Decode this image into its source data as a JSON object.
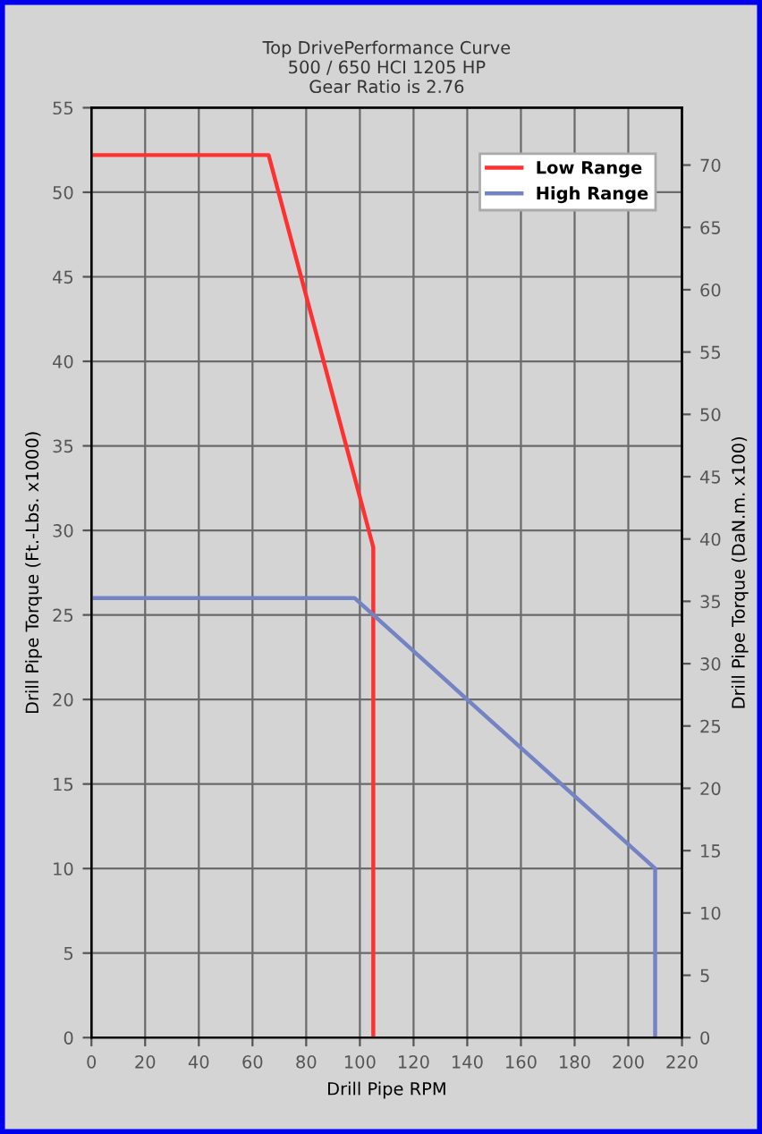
{
  "chart_data": {
    "type": "line",
    "title": "Top DrivePerformance Curve\n500 / 650 HCI 1205 HP\nGear Ratio is 2.76",
    "xlabel": "Drill Pipe RPM",
    "ylabel": "Drill Pipe Torque (Ft.-Lbs. x1000)",
    "y2label": "Drill Pipe Torque (DaN.m. x100)",
    "series": [
      {
        "name": "Low Range",
        "color": "#ff3030",
        "x": [
          0,
          66,
          105,
          105
        ],
        "values": [
          52.2,
          52.2,
          29,
          0
        ]
      },
      {
        "name": "High Range",
        "color": "#7383c4",
        "x": [
          0,
          98,
          210,
          210
        ],
        "values": [
          26,
          26,
          10,
          0
        ]
      }
    ],
    "xlim": [
      0,
      220
    ],
    "xticks": [
      0,
      20,
      40,
      60,
      80,
      100,
      120,
      140,
      160,
      180,
      200,
      220
    ],
    "ylim": [
      0,
      55
    ],
    "yticks": [
      0,
      5,
      10,
      15,
      20,
      25,
      30,
      35,
      40,
      45,
      50,
      55
    ],
    "y2lim": [
      0,
      74.6
    ],
    "y2ticks": [
      0,
      5,
      10,
      15,
      20,
      25,
      30,
      35,
      40,
      45,
      50,
      55,
      60,
      65,
      70
    ],
    "grid": true,
    "legend": "top right",
    "line_style": "solid",
    "marker": "none"
  }
}
